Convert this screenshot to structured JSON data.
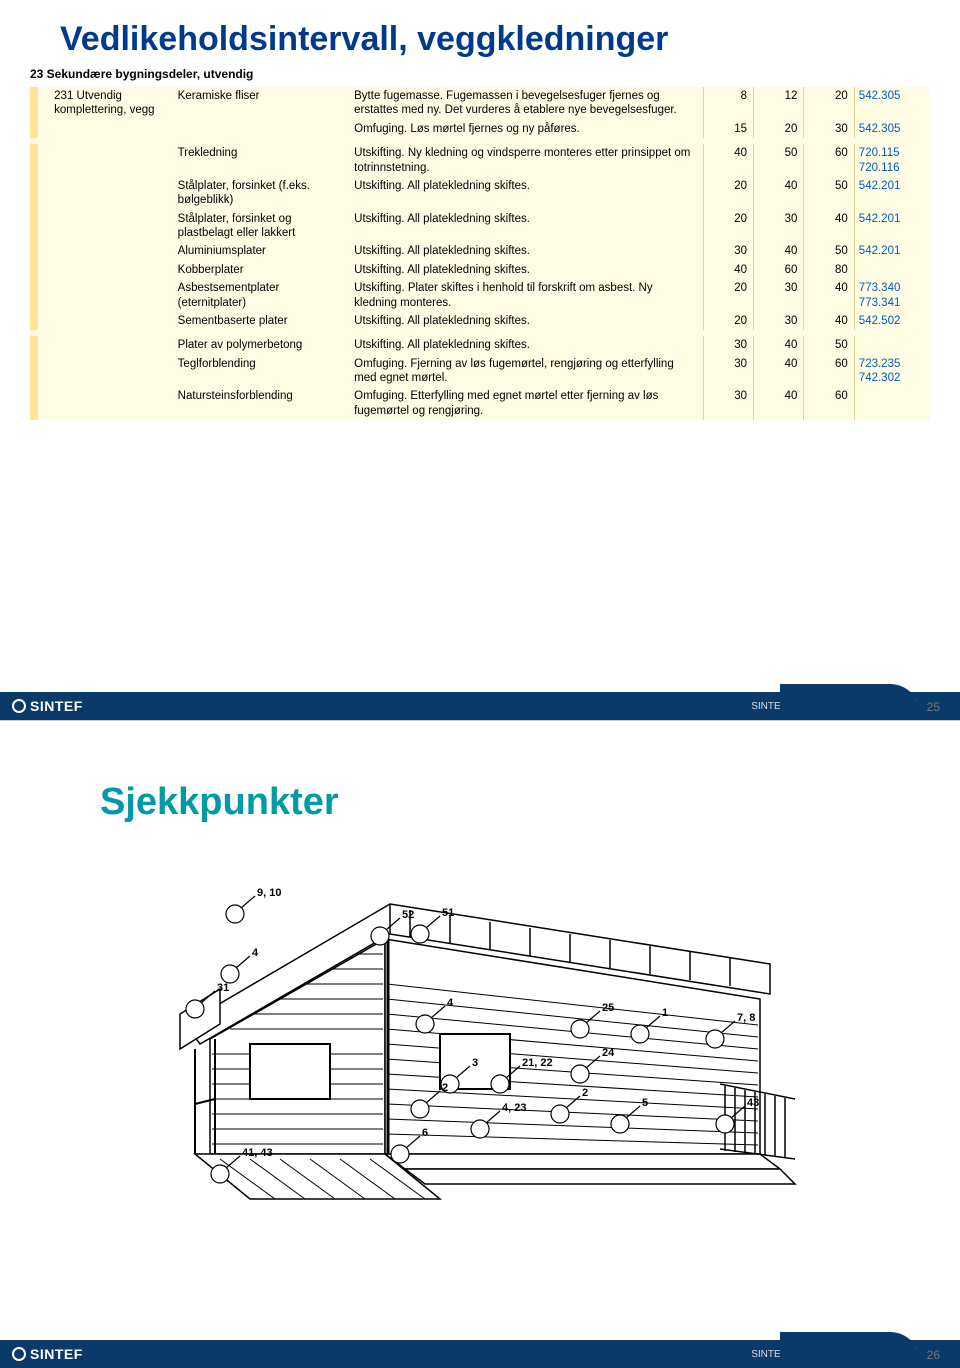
{
  "slide1": {
    "title": "Vedlikeholdsintervall, veggkledninger",
    "section_heading": "23 Sekundære bygningsdeler, utvendig",
    "row_group_label": "231 Utvendig komplettering, vegg",
    "rows": [
      {
        "material": "Keramiske fliser",
        "action": "Bytte fugemasse. Fugemassen i bevegelsesfuger fjernes og erstattes med ny. Det vurderes å etablere nye bevegelsesfuger.",
        "c1": "8",
        "c2": "12",
        "c3": "20",
        "ref": "542.305"
      },
      {
        "material": "",
        "action": "Omfuging. Løs mørtel fjernes og ny påføres.",
        "c1": "15",
        "c2": "20",
        "c3": "30",
        "ref": "542.305"
      },
      {
        "material": "Trekledning",
        "action": "Utskifting. Ny kledning og vindsperre monteres etter prinsippet om totrinnstetning.",
        "c1": "40",
        "c2": "50",
        "c3": "60",
        "ref": "720.115 720.116"
      },
      {
        "material": "Stålplater, forsinket (f.eks. bølgeblikk)",
        "action": "Utskifting. All platekledning skiftes.",
        "c1": "20",
        "c2": "40",
        "c3": "50",
        "ref": "542.201"
      },
      {
        "material": "Stålplater, forsinket og plastbelagt eller lakkert",
        "action": "Utskifting. All platekledning skiftes.",
        "c1": "20",
        "c2": "30",
        "c3": "40",
        "ref": "542.201"
      },
      {
        "material": "Aluminiumsplater",
        "action": "Utskifting. All platekledning skiftes.",
        "c1": "30",
        "c2": "40",
        "c3": "50",
        "ref": "542.201"
      },
      {
        "material": "Kobberplater",
        "action": "Utskifting. All platekledning skiftes.",
        "c1": "40",
        "c2": "60",
        "c3": "80",
        "ref": ""
      },
      {
        "material": "Asbestsementplater (eternitplater)",
        "action": "Utskifting. Plater skiftes i henhold til forskrift om asbest. Ny kledning monteres.",
        "c1": "20",
        "c2": "30",
        "c3": "40",
        "ref": "773.340 773.341"
      },
      {
        "material": "Sementbaserte plater",
        "action": "Utskifting. All platekledning skiftes.",
        "c1": "20",
        "c2": "30",
        "c3": "40",
        "ref": "542.502"
      },
      {
        "material": "Plater av polymerbetong",
        "action": "Utskifting. All platekledning skiftes.",
        "c1": "30",
        "c2": "40",
        "c3": "50",
        "ref": ""
      },
      {
        "material": "Teglforblending",
        "action": "Omfuging. Fjerning av løs fugemørtel, rengjøring og etterfylling med egnet mørtel.",
        "c1": "30",
        "c2": "40",
        "c3": "60",
        "ref": "723.235 742.302"
      },
      {
        "material": "Natursteinsforblending",
        "action": "Omfuging. Etterfylling med egnet mørtel etter fjerning av løs fugemørtel og rengjøring.",
        "c1": "30",
        "c2": "40",
        "c3": "60",
        "ref": ""
      }
    ],
    "footer_label": "SINTEF Byggforsk",
    "page": "25",
    "logo": "SINTEF"
  },
  "slide2": {
    "title": "Sjekkpunkter",
    "footer_label": "SINTEF Byggforsk",
    "page": "26",
    "logo": "SINTEF",
    "callouts": [
      "9, 10",
      "4",
      "31",
      "52",
      "51",
      "4",
      "25",
      "1",
      "7, 8",
      "3",
      "21, 22",
      "24",
      "2",
      "2",
      "4, 23",
      "5",
      "43",
      "6",
      "41, 43"
    ]
  },
  "colors": {
    "title_blue": "#003a8c",
    "title_teal": "#009aa6",
    "table_bg": "#fffce4",
    "stripe": "#ffe49c",
    "ref_blue": "#005bbb",
    "footer_bg": "#0a3a6a"
  }
}
